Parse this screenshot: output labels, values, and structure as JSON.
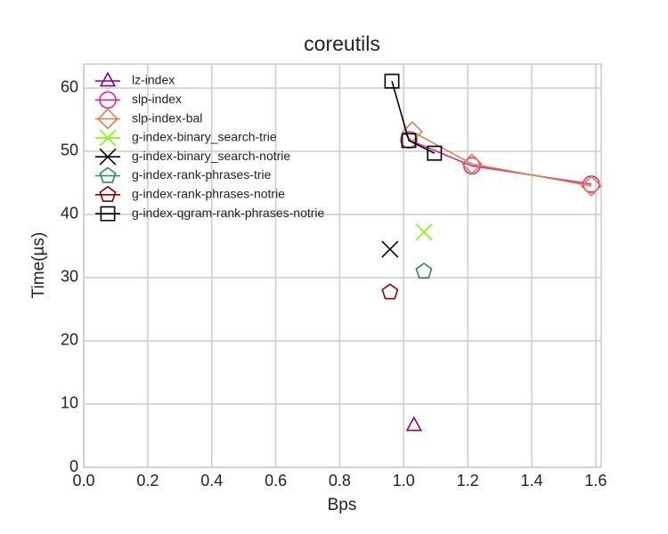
{
  "chart_data": {
    "type": "line",
    "title": "coreutils",
    "x_label": "Bps",
    "y_label": "Time(µs)",
    "xlim": [
      0,
      1.617
    ],
    "ylim": [
      0,
      63.8
    ],
    "xticks": [
      {
        "value": 0,
        "label": "0.0"
      },
      0.2,
      0.4,
      0.6,
      0.8,
      {
        "value": 1,
        "label": "1.0"
      },
      1.2,
      1.4,
      1.6
    ],
    "yticks": [
      0,
      10,
      20,
      30,
      40,
      50,
      60
    ],
    "grid": true,
    "legend": "upper left",
    "series": [
      {
        "name": "lz-index",
        "color": "#800080",
        "marker": "triangle",
        "x": [
          1.032
        ],
        "values": [
          6.6
        ]
      },
      {
        "name": "slp-index",
        "color": "#e8209a",
        "marker": "circle",
        "x": [
          1.016,
          1.213,
          1.586
        ],
        "values": [
          51.8,
          47.7,
          44.8
        ]
      },
      {
        "name": "slp-index-bal",
        "color": "#d2874a",
        "marker": "diamond",
        "x": [
          1.027,
          1.213,
          1.586
        ],
        "values": [
          53.1,
          48.0,
          44.5
        ]
      },
      {
        "name": "g-index-binary_search-trie",
        "color": "#7cfc00",
        "marker": "x",
        "x": [
          1.063
        ],
        "values": [
          37.2
        ]
      },
      {
        "name": "g-index-binary_search-notrie",
        "color": "#000000",
        "marker": "x",
        "x": [
          0.957
        ],
        "values": [
          34.5
        ]
      },
      {
        "name": "g-index-rank-phrases-trie",
        "color": "#2e8b57",
        "marker": "pentagon",
        "x": [
          1.063
        ],
        "values": [
          31.0
        ]
      },
      {
        "name": "g-index-rank-phrases-notrie",
        "color": "#8b0000",
        "marker": "pentagon",
        "x": [
          0.957
        ],
        "values": [
          27.7
        ]
      },
      {
        "name": "g-index-qgram-rank-phrases-notrie",
        "color": "#000000",
        "marker": "square",
        "x": [
          0.963,
          1.016,
          1.096
        ],
        "values": [
          61.1,
          51.7,
          49.7
        ]
      }
    ]
  }
}
